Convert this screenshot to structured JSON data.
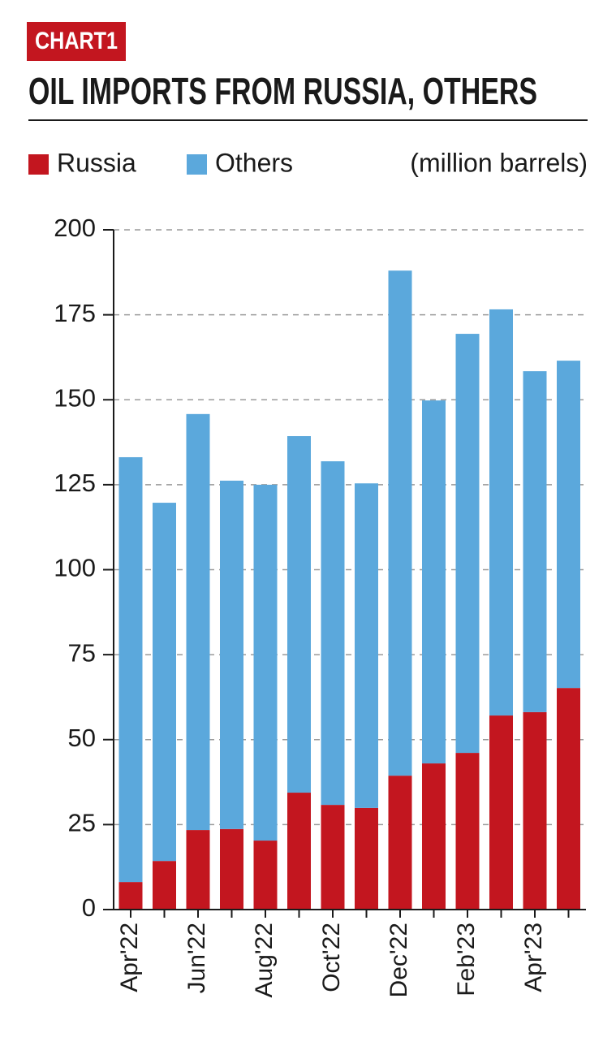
{
  "chart_data": {
    "type": "stacked-bar",
    "label": "CHART1",
    "title": "OIL IMPORTS FROM RUSSIA, OTHERS",
    "unit": "(million barrels)",
    "categories": [
      "Apr'22",
      null,
      "Jun'22",
      null,
      "Aug'22",
      null,
      "Oct'22",
      null,
      "Dec'22",
      null,
      "Feb'23",
      null,
      "Apr'23",
      null
    ],
    "series": [
      {
        "name": "Russia",
        "color": "#c3161f",
        "values": [
          8.1,
          14.3,
          23.4,
          23.7,
          20.3,
          34.4,
          30.8,
          29.9,
          39.4,
          43.0,
          46.1,
          57.1,
          58.1,
          65.2
        ]
      },
      {
        "name": "Others",
        "color": "#5ba8dc",
        "values": [
          125.0,
          105.4,
          122.4,
          102.5,
          104.7,
          104.9,
          101.1,
          95.5,
          148.6,
          106.8,
          123.3,
          119.5,
          100.3,
          96.3
        ]
      }
    ],
    "ylim": [
      0,
      200
    ],
    "yticks": [
      0,
      25,
      50,
      75,
      100,
      125,
      150,
      175,
      200
    ],
    "grid": true,
    "legend": "top"
  }
}
